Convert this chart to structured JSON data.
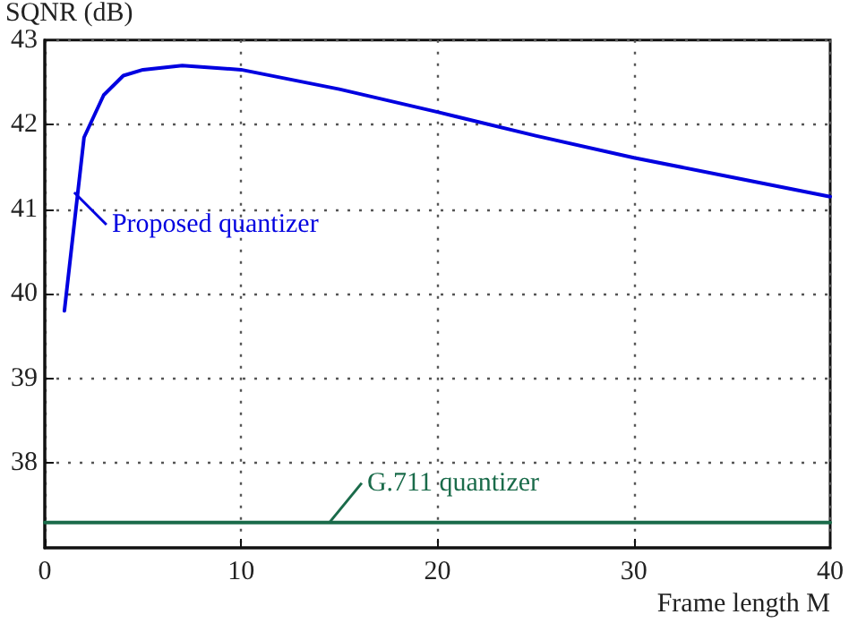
{
  "chart_data": {
    "type": "line",
    "xlabel": "Frame length M",
    "ylabel": "SQNR (dB)",
    "xlim": [
      0,
      40
    ],
    "xticks": [
      0,
      10,
      20,
      30,
      40
    ],
    "ylim": [
      37,
      43
    ],
    "yticks": [
      38,
      39,
      40,
      41,
      42,
      43
    ],
    "grid": true,
    "marker": "none",
    "line_style": "solid",
    "series": [
      {
        "color": "#0000e0",
        "x": [
          1,
          2,
          3,
          4,
          5,
          7,
          10,
          15,
          20,
          25,
          30,
          35,
          40
        ],
        "values": [
          39.8,
          41.85,
          42.35,
          42.58,
          42.65,
          42.7,
          42.65,
          42.42,
          42.15,
          41.87,
          41.61,
          41.38,
          41.15
        ]
      },
      {
        "color": "#1a6b4a",
        "x": [
          0,
          40
        ],
        "values": [
          37.3,
          37.3
        ]
      }
    ],
    "annotations": [
      {
        "text": "Proposed quantizer",
        "x": 1.5,
        "y": 41.2
      },
      {
        "text": "G.711 quantizer",
        "x": 14.5,
        "y": 37.3
      }
    ]
  }
}
